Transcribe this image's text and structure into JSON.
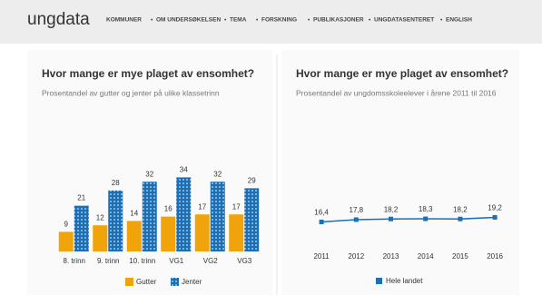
{
  "header": {
    "logo": "ungdata",
    "nav": [
      "KOMMUNER",
      "OM UNDERSØKELSEN",
      "TEMA",
      "FORSKNING",
      "PUBLIKASJONER",
      "UNGDATASENTERET",
      "ENGLISH"
    ]
  },
  "chart_data": [
    {
      "type": "bar",
      "title": "Hvor mange er mye plaget av ensomhet?",
      "subtitle": "Prosentandel av gutter og jenter på ulike klassetrinn",
      "categories": [
        "8. trinn",
        "9. trinn",
        "10. trinn",
        "VG1",
        "VG2",
        "VG3"
      ],
      "series": [
        {
          "name": "Gutter",
          "color": "#f0a30a",
          "values": [
            9,
            12,
            14,
            16,
            17,
            17
          ]
        },
        {
          "name": "Jenter",
          "color": "#1a6fb5",
          "values": [
            21,
            28,
            32,
            34,
            32,
            29
          ]
        }
      ]
    },
    {
      "type": "line",
      "title": "Hvor mange er mye plaget av ensomhet?",
      "subtitle": "Prosentandel av ungdomsskoleelever i årene 2011 til 2016",
      "categories": [
        "2011",
        "2012",
        "2013",
        "2014",
        "2015",
        "2016"
      ],
      "series": [
        {
          "name": "Hele landet",
          "color": "#1a6fb5",
          "values": [
            16.4,
            17.8,
            18.2,
            18.3,
            18.2,
            19.2
          ],
          "value_labels": [
            "16,4",
            "17,8",
            "18,2",
            "18,3",
            "18,2",
            "19,2"
          ]
        }
      ]
    }
  ]
}
